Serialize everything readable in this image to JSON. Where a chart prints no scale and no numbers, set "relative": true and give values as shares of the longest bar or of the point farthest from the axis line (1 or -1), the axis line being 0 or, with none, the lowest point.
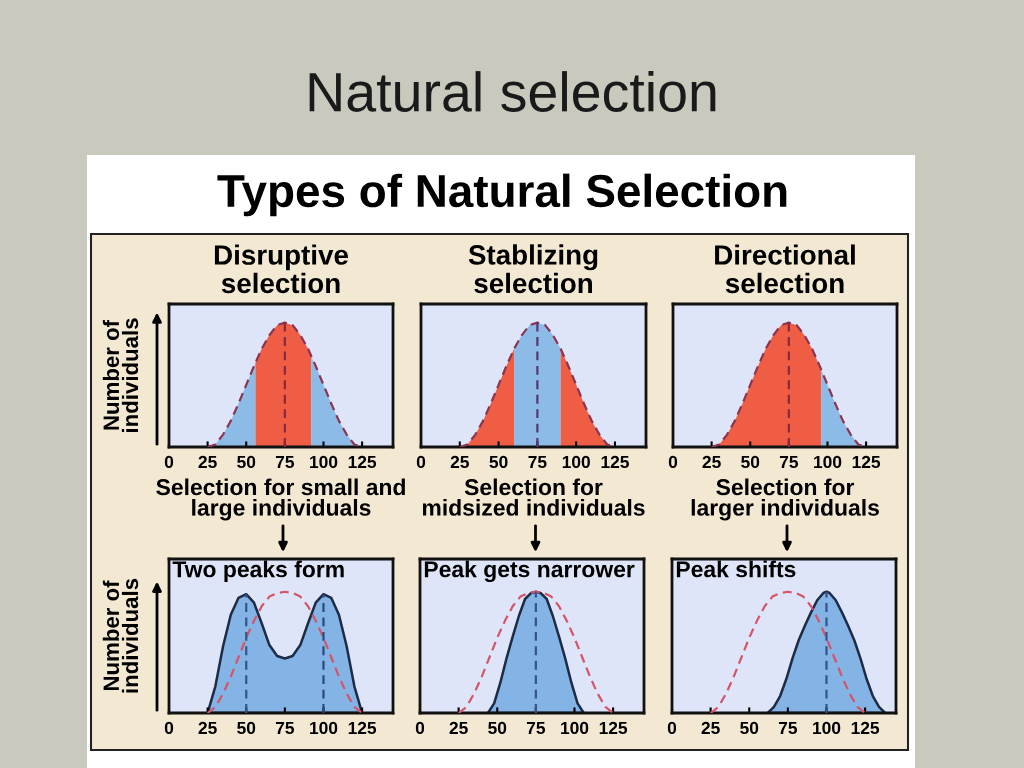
{
  "chart_data": [
    {
      "type": "other",
      "title": "Natural selection",
      "subtitle": "Types of Natural Selection"
    },
    {
      "type": "area",
      "title": "Disruptive\nselection",
      "xlabel": "Selection for small and\nlarge individuals",
      "ylabel": "Number of\nindividuals",
      "relative": true,
      "xlim": [
        0,
        145
      ],
      "xticks": [
        0,
        25,
        50,
        75,
        100,
        125
      ],
      "tick_labels": "x",
      "series": [
        {
          "type": "area",
          "color": "#8dbbe8",
          "x": [
            25,
            30,
            35,
            40,
            45,
            50,
            55,
            56
          ],
          "values": [
            0,
            0.02,
            0.1,
            0.21,
            0.35,
            0.5,
            0.65,
            0.68
          ]
        },
        {
          "type": "area",
          "color": "#ee5d44",
          "x": [
            56,
            60,
            65,
            70,
            75,
            80,
            85,
            90,
            92
          ],
          "values": [
            0.68,
            0.79,
            0.9,
            0.98,
            1,
            0.98,
            0.9,
            0.79,
            0.73
          ]
        },
        {
          "type": "area",
          "color": "#8dbbe8",
          "x": [
            92,
            95,
            100,
            105,
            110,
            115,
            120,
            125
          ],
          "values": [
            0.73,
            0.65,
            0.5,
            0.35,
            0.21,
            0.1,
            0.02,
            0
          ]
        },
        {
          "type": "line",
          "line_style": "dashed",
          "color": "#8a3552",
          "x": [
            25,
            30,
            35,
            40,
            45,
            50,
            55,
            60,
            65,
            70,
            75,
            80,
            85,
            90,
            95,
            100,
            105,
            110,
            115,
            120,
            125
          ],
          "values": [
            0,
            0.02,
            0.1,
            0.21,
            0.35,
            0.5,
            0.65,
            0.79,
            0.9,
            0.98,
            1,
            0.98,
            0.9,
            0.79,
            0.65,
            0.5,
            0.35,
            0.21,
            0.1,
            0.02,
            0
          ]
        },
        {
          "type": "line",
          "line_style": "dashed",
          "color": "#8a2a3a",
          "x": [
            75,
            75
          ],
          "values": [
            0,
            1
          ]
        }
      ]
    },
    {
      "type": "area",
      "title": "Stablizing\nselection",
      "xlabel": "Selection for\nmidsized individuals",
      "relative": true,
      "xlim": [
        0,
        145
      ],
      "xticks": [
        0,
        25,
        50,
        75,
        100,
        125
      ],
      "tick_labels": "x",
      "series": [
        {
          "type": "area",
          "color": "#ee5d44",
          "x": [
            25,
            30,
            35,
            40,
            45,
            50,
            55,
            60
          ],
          "values": [
            0,
            0.02,
            0.1,
            0.21,
            0.35,
            0.5,
            0.65,
            0.79
          ]
        },
        {
          "type": "area",
          "color": "#8dbbe8",
          "x": [
            60,
            65,
            70,
            75,
            80,
            85,
            90
          ],
          "values": [
            0.79,
            0.9,
            0.98,
            1,
            0.98,
            0.9,
            0.79
          ]
        },
        {
          "type": "area",
          "color": "#ee5d44",
          "x": [
            90,
            95,
            100,
            105,
            110,
            115,
            120,
            125
          ],
          "values": [
            0.79,
            0.65,
            0.5,
            0.35,
            0.21,
            0.1,
            0.02,
            0
          ]
        },
        {
          "type": "line",
          "line_style": "dashed",
          "color": "#8a3552",
          "x": [
            25,
            30,
            35,
            40,
            45,
            50,
            55,
            60,
            65,
            70,
            75,
            80,
            85,
            90,
            95,
            100,
            105,
            110,
            115,
            120,
            125
          ],
          "values": [
            0,
            0.02,
            0.1,
            0.21,
            0.35,
            0.5,
            0.65,
            0.79,
            0.9,
            0.98,
            1,
            0.98,
            0.9,
            0.79,
            0.65,
            0.5,
            0.35,
            0.21,
            0.1,
            0.02,
            0
          ]
        },
        {
          "type": "line",
          "line_style": "dashed",
          "color": "#5a3570",
          "x": [
            75,
            75
          ],
          "values": [
            0,
            1
          ]
        }
      ]
    },
    {
      "type": "area",
      "title": "Directional\nselection",
      "xlabel": "Selection for\nlarger individuals",
      "relative": true,
      "xlim": [
        0,
        145
      ],
      "xticks": [
        0,
        25,
        50,
        75,
        100,
        125
      ],
      "tick_labels": "x",
      "series": [
        {
          "type": "area",
          "color": "#ee5d44",
          "x": [
            25,
            30,
            35,
            40,
            45,
            50,
            55,
            60,
            65,
            70,
            75,
            80,
            85,
            90,
            95,
            96
          ],
          "values": [
            0,
            0.02,
            0.1,
            0.21,
            0.35,
            0.5,
            0.65,
            0.79,
            0.9,
            0.98,
            1,
            0.98,
            0.9,
            0.79,
            0.65,
            0.62
          ]
        },
        {
          "type": "area",
          "color": "#8dbbe8",
          "x": [
            96,
            100,
            105,
            110,
            115,
            120,
            125
          ],
          "values": [
            0.62,
            0.5,
            0.35,
            0.21,
            0.1,
            0.02,
            0
          ]
        },
        {
          "type": "line",
          "line_style": "dashed",
          "color": "#8a3552",
          "x": [
            25,
            30,
            35,
            40,
            45,
            50,
            55,
            60,
            65,
            70,
            75,
            80,
            85,
            90,
            95,
            100,
            105,
            110,
            115,
            120,
            125
          ],
          "values": [
            0,
            0.02,
            0.1,
            0.21,
            0.35,
            0.5,
            0.65,
            0.79,
            0.9,
            0.98,
            1,
            0.98,
            0.9,
            0.79,
            0.65,
            0.5,
            0.35,
            0.21,
            0.1,
            0.02,
            0
          ]
        },
        {
          "type": "line",
          "line_style": "dashed",
          "color": "#8a2a3a",
          "x": [
            75,
            75
          ],
          "values": [
            0,
            1
          ]
        }
      ]
    },
    {
      "type": "area",
      "ylabel": "Number of\nindividuals",
      "annotations": [
        "Two peaks form"
      ],
      "relative": true,
      "xlim": [
        0,
        145
      ],
      "xticks": [
        0,
        25,
        50,
        75,
        100,
        125
      ],
      "tick_labels": "x",
      "series": [
        {
          "type": "area",
          "line_style": "solid",
          "color": "#84b4e6",
          "x": [
            25,
            30,
            35,
            40,
            45,
            50,
            55,
            60,
            65,
            70,
            75,
            80,
            85,
            90,
            95,
            100,
            105,
            110,
            115,
            120,
            125
          ],
          "values": [
            0,
            0.22,
            0.55,
            0.81,
            0.95,
            0.98,
            0.91,
            0.74,
            0.56,
            0.47,
            0.45,
            0.47,
            0.56,
            0.74,
            0.91,
            0.98,
            0.95,
            0.81,
            0.55,
            0.22,
            0
          ]
        },
        {
          "type": "line",
          "line_style": "dashed",
          "color": "#d4546a",
          "x": [
            25,
            30,
            35,
            40,
            45,
            50,
            55,
            60,
            65,
            70,
            75,
            80,
            85,
            90,
            95,
            100,
            105,
            110,
            115,
            120,
            125
          ],
          "values": [
            0,
            0.05,
            0.16,
            0.3,
            0.46,
            0.62,
            0.76,
            0.88,
            0.96,
            0.99,
            1,
            0.99,
            0.96,
            0.88,
            0.76,
            0.62,
            0.46,
            0.3,
            0.16,
            0.05,
            0
          ]
        },
        {
          "type": "line",
          "line_style": "dashed",
          "color": "#34558c",
          "x": [
            50,
            50
          ],
          "values": [
            0,
            0.98
          ]
        },
        {
          "type": "line",
          "line_style": "dashed",
          "color": "#2b4a80",
          "x": [
            100,
            100
          ],
          "values": [
            0,
            0.98
          ]
        }
      ]
    },
    {
      "type": "area",
      "annotations": [
        "Peak gets narrower"
      ],
      "relative": true,
      "xlim": [
        0,
        145
      ],
      "xticks": [
        0,
        25,
        50,
        75,
        100,
        125
      ],
      "tick_labels": "x",
      "series": [
        {
          "type": "area",
          "line_style": "solid",
          "color": "#84b4e6",
          "x": [
            44,
            48,
            52,
            56,
            60,
            64,
            68,
            72,
            75,
            78,
            82,
            86,
            90,
            94,
            98,
            102,
            106
          ],
          "values": [
            0,
            0.08,
            0.25,
            0.45,
            0.63,
            0.8,
            0.94,
            0.99,
            1,
            0.99,
            0.94,
            0.8,
            0.63,
            0.45,
            0.25,
            0.08,
            0
          ]
        },
        {
          "type": "line",
          "line_style": "dashed",
          "color": "#d4546a",
          "x": [
            25,
            30,
            35,
            40,
            45,
            50,
            55,
            60,
            65,
            70,
            75,
            80,
            85,
            90,
            95,
            100,
            105,
            110,
            115,
            120,
            125
          ],
          "values": [
            0,
            0.05,
            0.16,
            0.3,
            0.46,
            0.62,
            0.76,
            0.88,
            0.96,
            0.99,
            1,
            0.99,
            0.96,
            0.88,
            0.76,
            0.62,
            0.46,
            0.3,
            0.16,
            0.05,
            0
          ]
        },
        {
          "type": "line",
          "line_style": "dashed",
          "color": "#34558c",
          "x": [
            75,
            75
          ],
          "values": [
            0,
            1
          ]
        }
      ]
    },
    {
      "type": "area",
      "annotations": [
        "Peak shifts"
      ],
      "relative": true,
      "xlim": [
        0,
        145
      ],
      "xticks": [
        0,
        25,
        50,
        75,
        100,
        125
      ],
      "tick_labels": "x",
      "series": [
        {
          "type": "area",
          "line_style": "solid",
          "color": "#84b4e6",
          "x": [
            62,
            66,
            70,
            74,
            78,
            82,
            86,
            90,
            94,
            98,
            100,
            102,
            106,
            110,
            114,
            118,
            122,
            126,
            130,
            134,
            138
          ],
          "values": [
            0,
            0.05,
            0.14,
            0.28,
            0.45,
            0.6,
            0.72,
            0.83,
            0.93,
            0.99,
            1,
            0.99,
            0.93,
            0.83,
            0.72,
            0.6,
            0.45,
            0.28,
            0.14,
            0.05,
            0
          ]
        },
        {
          "type": "line",
          "line_style": "dashed",
          "color": "#d4546a",
          "x": [
            25,
            30,
            35,
            40,
            45,
            50,
            55,
            60,
            65,
            70,
            75,
            80,
            85,
            90,
            95,
            100,
            105,
            110,
            115,
            120,
            125
          ],
          "values": [
            0,
            0.05,
            0.16,
            0.3,
            0.46,
            0.62,
            0.76,
            0.88,
            0.96,
            0.99,
            1,
            0.99,
            0.96,
            0.88,
            0.76,
            0.62,
            0.46,
            0.3,
            0.16,
            0.05,
            0
          ]
        },
        {
          "type": "line",
          "line_style": "dashed",
          "color": "#34558c",
          "x": [
            100,
            100
          ],
          "values": [
            0,
            1
          ]
        }
      ]
    }
  ]
}
